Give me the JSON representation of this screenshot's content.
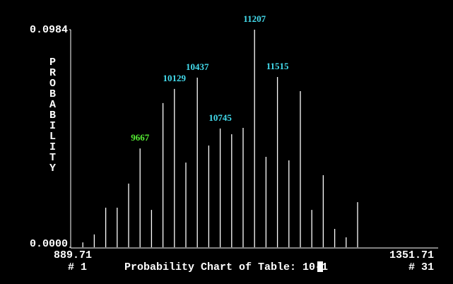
{
  "chart_data": {
    "type": "bar",
    "title": "Probability Chart of Table: 10-1",
    "y_label": "PROBABILITY",
    "x": [
      8743,
      8897,
      9051,
      9205,
      9359,
      9513,
      9667,
      9821,
      9975,
      10129,
      10283,
      10437,
      10591,
      10745,
      10899,
      11053,
      11207,
      11361,
      11515,
      11669,
      11823,
      11977,
      12131,
      12285,
      12439,
      12593,
      12747,
      12901,
      13055,
      13209,
      13363
    ],
    "values": [
      0,
      0.0022,
      0.0058,
      0.0179,
      0.0179,
      0.0288,
      0.0447,
      0.0169,
      0.0652,
      0.0716,
      0.0383,
      0.0767,
      0.046,
      0.0537,
      0.0511,
      0.054,
      0.0984,
      0.0409,
      0.077,
      0.0393,
      0.0706,
      0.0169,
      0.0326,
      0.0083,
      0.0045,
      0.0204,
      0,
      0,
      0,
      0,
      0
    ],
    "color": "#ffffff",
    "xlim": [
      8743,
      13363
    ],
    "x_end_labels": [
      "889.71",
      "1351.71"
    ],
    "slot_labels": [
      "# 1",
      "# 31"
    ],
    "ylim": [
      0,
      0.0984
    ],
    "yticks": [
      {
        "value": 0,
        "label": "0.0000"
      },
      {
        "value": 0.0984,
        "label": "0.0984"
      }
    ],
    "annotations": [
      {
        "x": 9667,
        "color": "#55ee33"
      },
      {
        "x": 10129,
        "color": "#44ddee"
      },
      {
        "x": 10437,
        "color": "#44ddee"
      },
      {
        "x": 10745,
        "color": "#44ddee"
      },
      {
        "x": 11207,
        "color": "#44ddee"
      },
      {
        "x": 11515,
        "color": "#44ddee"
      }
    ]
  }
}
